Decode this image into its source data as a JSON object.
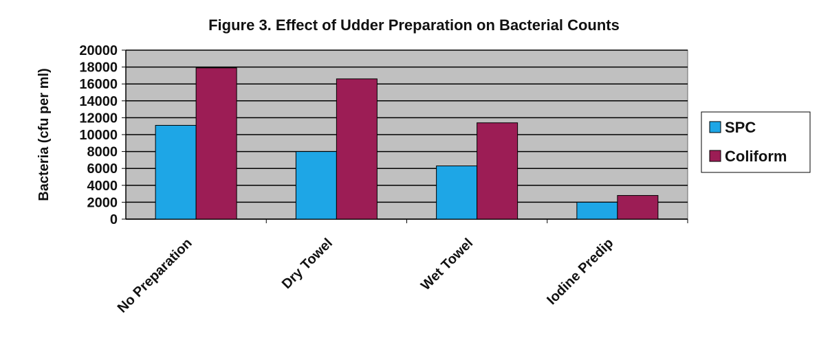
{
  "chart_data": {
    "type": "bar",
    "title": "Figure 3.  Effect of Udder Preparation on Bacterial Counts",
    "y_label": "Bacteria (cfu per ml)",
    "categories": [
      "No Preparation",
      "Dry Towel",
      "Wet Towel",
      "Iodine Predip"
    ],
    "series": [
      {
        "name": "SPC",
        "color": "#1ea6e6",
        "values": [
          11100,
          8000,
          6300,
          2000
        ]
      },
      {
        "name": "Coliform",
        "color": "#9c1d55",
        "values": [
          17900,
          16600,
          11400,
          2800
        ]
      }
    ],
    "ylim": [
      0,
      20000
    ],
    "yticks": [
      0,
      2000,
      4000,
      6000,
      8000,
      10000,
      12000,
      14000,
      16000,
      18000,
      20000
    ],
    "grid": true,
    "legend": "right"
  }
}
